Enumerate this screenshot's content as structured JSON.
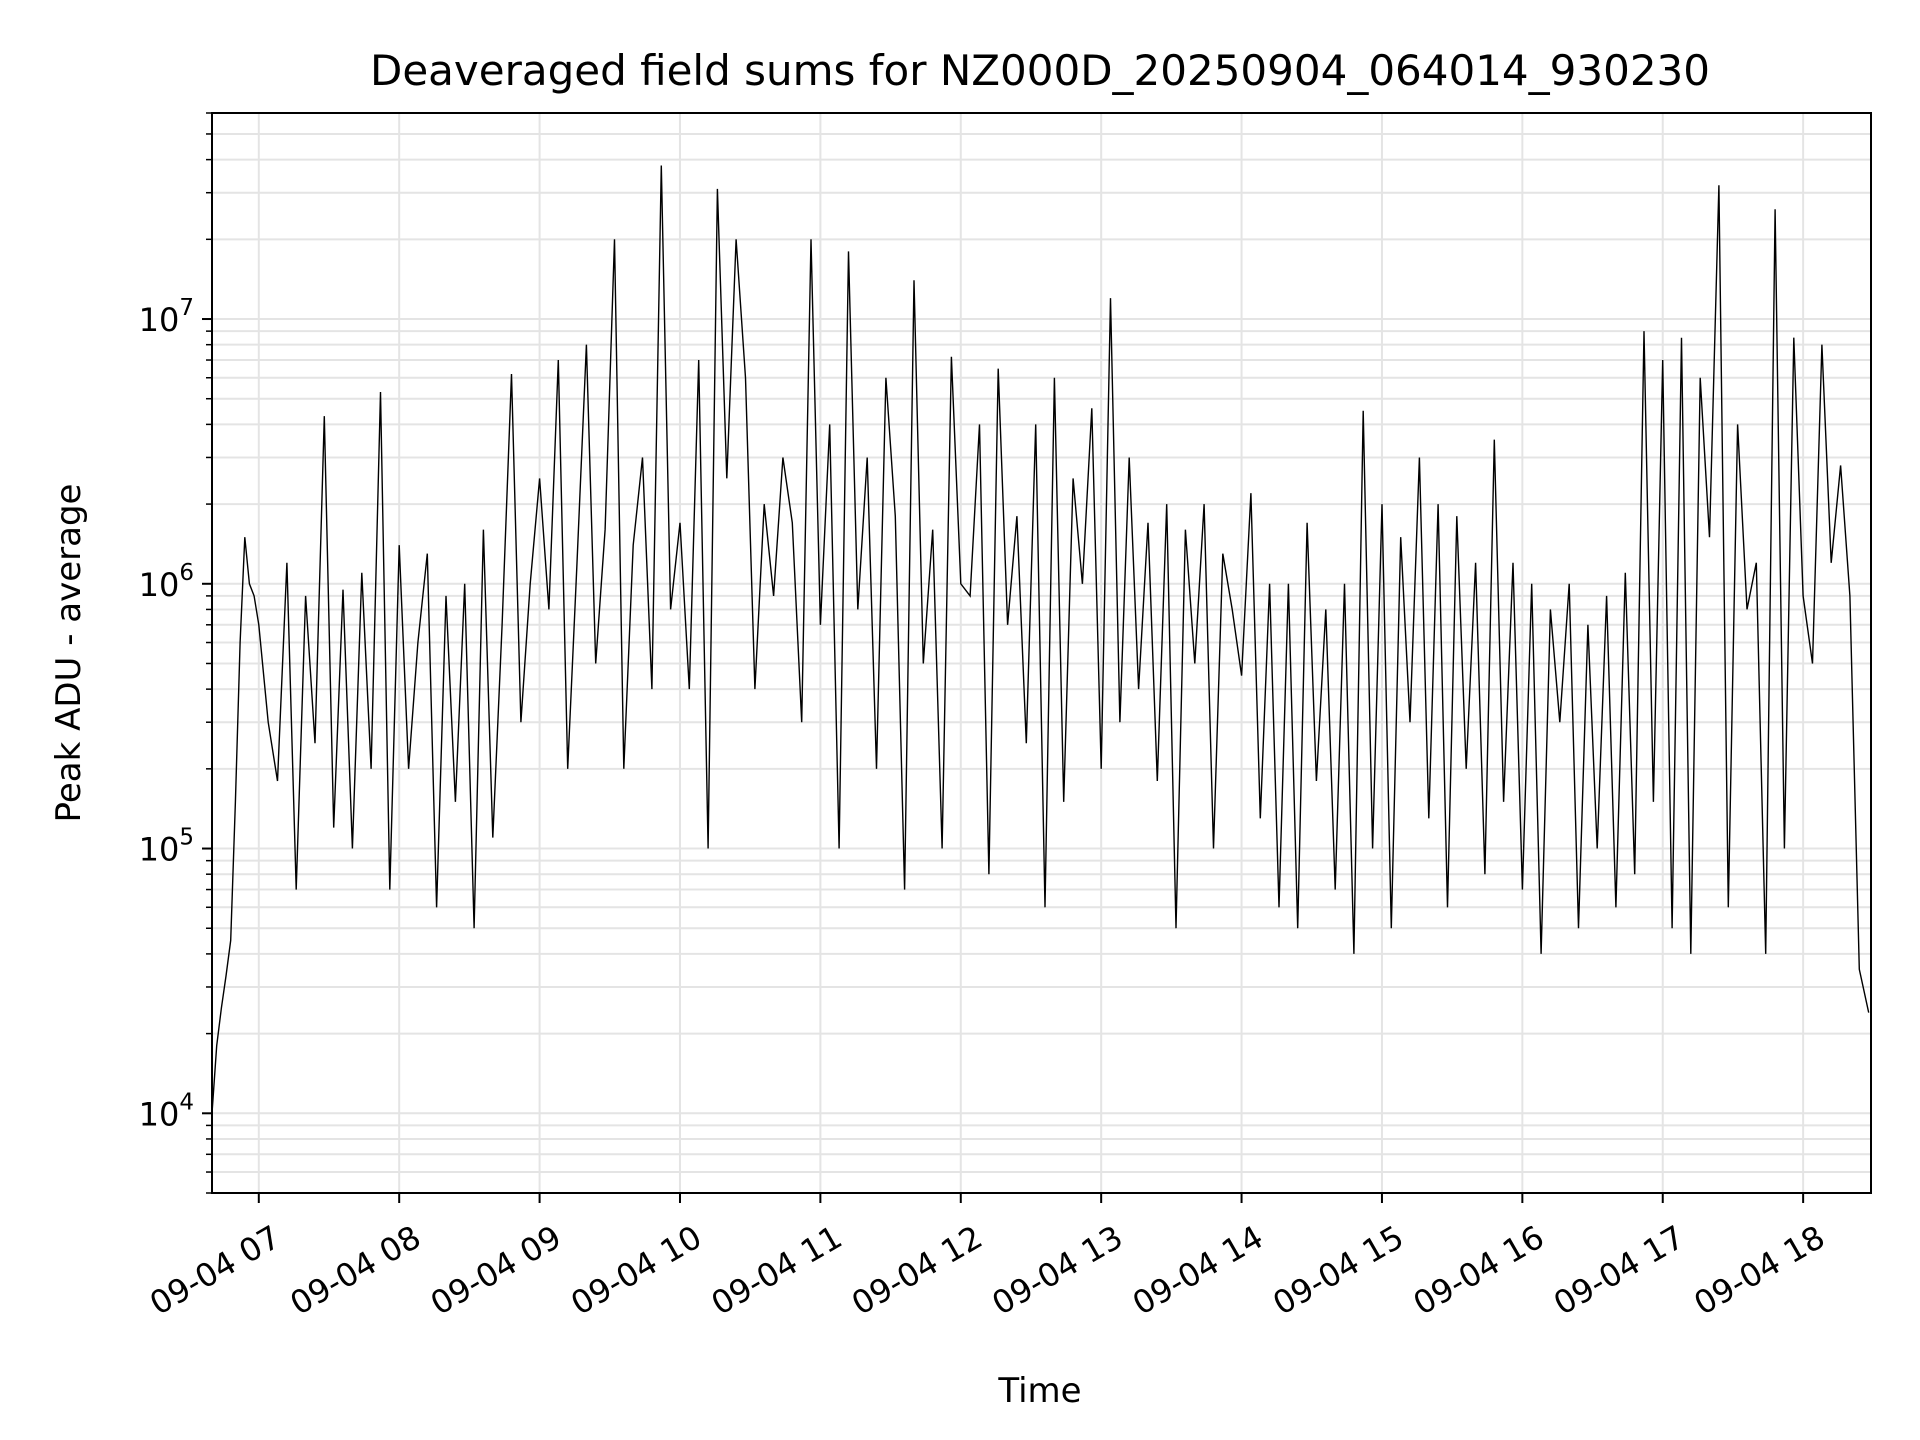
{
  "chart_data": {
    "type": "line",
    "title": "Deaveraged field sums for NZ000D_20250904_064014_930230",
    "xlabel": "Time",
    "ylabel": "Peak ADU - average",
    "y_scale": "log",
    "xlim": [
      "2025-09-04 06:40",
      "2025-09-04 18:29"
    ],
    "ylim": [
      5000,
      60000000
    ],
    "grid": true,
    "line_color": "#000000",
    "grid_color": "#e4e4e4",
    "x_ticks": [
      "09-04 07",
      "09-04 08",
      "09-04 09",
      "09-04 10",
      "09-04 11",
      "09-04 12",
      "09-04 13",
      "09-04 14",
      "09-04 15",
      "09-04 16",
      "09-04 17",
      "09-04 18"
    ],
    "y_ticks": [
      {
        "base": "10",
        "exp": "4",
        "value": 10000
      },
      {
        "base": "10",
        "exp": "5",
        "value": 100000
      },
      {
        "base": "10",
        "exp": "6",
        "value": 1000000
      },
      {
        "base": "10",
        "exp": "7",
        "value": 10000000
      }
    ],
    "series": [
      {
        "x": [
          "06:40",
          "06:42",
          "06:44",
          "06:46",
          "06:48",
          "06:50",
          "06:52",
          "06:54",
          "06:56",
          "06:58",
          "07:00",
          "07:04",
          "07:08",
          "07:12",
          "07:16",
          "07:20",
          "07:24",
          "07:28",
          "07:32",
          "07:36",
          "07:40",
          "07:44",
          "07:48",
          "07:52",
          "07:56",
          "08:00",
          "08:04",
          "08:08",
          "08:12",
          "08:16",
          "08:20",
          "08:24",
          "08:28",
          "08:32",
          "08:36",
          "08:40",
          "08:44",
          "08:48",
          "08:52",
          "08:56",
          "09:00",
          "09:04",
          "09:08",
          "09:12",
          "09:16",
          "09:20",
          "09:24",
          "09:28",
          "09:32",
          "09:36",
          "09:40",
          "09:44",
          "09:48",
          "09:52",
          "09:56",
          "10:00",
          "10:04",
          "10:08",
          "10:12",
          "10:16",
          "10:20",
          "10:24",
          "10:28",
          "10:32",
          "10:36",
          "10:40",
          "10:44",
          "10:48",
          "10:52",
          "10:56",
          "11:00",
          "11:04",
          "11:08",
          "11:12",
          "11:16",
          "11:20",
          "11:24",
          "11:28",
          "11:32",
          "11:36",
          "11:40",
          "11:44",
          "11:48",
          "11:52",
          "11:56",
          "12:00",
          "12:04",
          "12:08",
          "12:12",
          "12:16",
          "12:20",
          "12:24",
          "12:28",
          "12:32",
          "12:36",
          "12:40",
          "12:44",
          "12:48",
          "12:52",
          "12:56",
          "13:00",
          "13:04",
          "13:08",
          "13:12",
          "13:16",
          "13:20",
          "13:24",
          "13:28",
          "13:32",
          "13:36",
          "13:40",
          "13:44",
          "13:48",
          "13:52",
          "13:56",
          "14:00",
          "14:04",
          "14:08",
          "14:12",
          "14:16",
          "14:20",
          "14:24",
          "14:28",
          "14:32",
          "14:36",
          "14:40",
          "14:44",
          "14:48",
          "14:52",
          "14:56",
          "15:00",
          "15:04",
          "15:08",
          "15:12",
          "15:16",
          "15:20",
          "15:24",
          "15:28",
          "15:32",
          "15:36",
          "15:40",
          "15:44",
          "15:48",
          "15:52",
          "15:56",
          "16:00",
          "16:04",
          "16:08",
          "16:12",
          "16:16",
          "16:20",
          "16:24",
          "16:28",
          "16:32",
          "16:36",
          "16:40",
          "16:44",
          "16:48",
          "16:52",
          "16:56",
          "17:00",
          "17:04",
          "17:08",
          "17:12",
          "17:16",
          "17:20",
          "17:24",
          "17:28",
          "17:32",
          "17:36",
          "17:40",
          "17:44",
          "17:48",
          "17:52",
          "17:56",
          "18:00",
          "18:04",
          "18:08",
          "18:12",
          "18:16",
          "18:20",
          "18:24",
          "18:28"
        ],
        "y": [
          10000,
          18000,
          25000,
          33000,
          45000,
          150000,
          600000,
          1500000,
          1000000,
          900000,
          700000,
          300000,
          180000,
          1200000,
          70000,
          900000,
          250000,
          4300000,
          120000,
          950000,
          100000,
          1100000,
          200000,
          5300000,
          70000,
          1400000,
          200000,
          600000,
          1300000,
          60000,
          900000,
          150000,
          1000000,
          50000,
          1600000,
          110000,
          700000,
          6200000,
          300000,
          1000000,
          2500000,
          800000,
          7000000,
          200000,
          1200000,
          8000000,
          500000,
          1600000,
          20000000,
          200000,
          1400000,
          3000000,
          400000,
          38000000,
          800000,
          1700000,
          400000,
          7000000,
          100000,
          31000000,
          2500000,
          20000000,
          6000000,
          400000,
          2000000,
          900000,
          3000000,
          1700000,
          300000,
          20000000,
          700000,
          4000000,
          100000,
          18000000,
          800000,
          3000000,
          200000,
          6000000,
          1800000,
          70000,
          14000000,
          500000,
          1600000,
          100000,
          7200000,
          1000000,
          900000,
          4000000,
          80000,
          6500000,
          700000,
          1800000,
          250000,
          4000000,
          60000,
          6000000,
          150000,
          2500000,
          1000000,
          4600000,
          200000,
          12000000,
          300000,
          3000000,
          400000,
          1700000,
          180000,
          2000000,
          50000,
          1600000,
          500000,
          2000000,
          100000,
          1300000,
          800000,
          450000,
          2200000,
          130000,
          1000000,
          60000,
          1000000,
          50000,
          1700000,
          180000,
          800000,
          70000,
          1000000,
          40000,
          4500000,
          100000,
          2000000,
          50000,
          1500000,
          300000,
          3000000,
          130000,
          2000000,
          60000,
          1800000,
          200000,
          1200000,
          80000,
          3500000,
          150000,
          1200000,
          70000,
          1000000,
          40000,
          800000,
          300000,
          1000000,
          50000,
          700000,
          100000,
          900000,
          60000,
          1100000,
          80000,
          9000000,
          150000,
          7000000,
          50000,
          8500000,
          40000,
          6000000,
          1500000,
          32000000,
          60000,
          4000000,
          800000,
          1200000,
          40000,
          26000000,
          100000,
          8500000,
          900000,
          500000,
          8000000,
          1200000,
          2800000,
          900000,
          35000,
          24000
        ]
      }
    ]
  }
}
